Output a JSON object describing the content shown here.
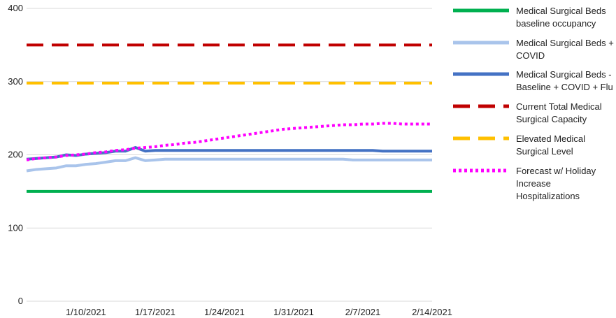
{
  "chart_data": {
    "type": "line",
    "categories": [
      null,
      null,
      null,
      null,
      null,
      null,
      "1/10/2021",
      null,
      null,
      null,
      null,
      null,
      null,
      "1/17/2021",
      null,
      null,
      null,
      null,
      null,
      null,
      "1/24/2021",
      null,
      null,
      null,
      null,
      null,
      null,
      "1/31/2021",
      null,
      null,
      null,
      null,
      null,
      null,
      "2/7/2021",
      null,
      null,
      null,
      null,
      null,
      null,
      "2/14/2021"
    ],
    "ylim": [
      0,
      400
    ],
    "yticks": [
      0,
      100,
      200,
      300,
      400
    ],
    "grid": true,
    "legend": "right",
    "series": [
      {
        "name": "Medical Surgical Beds baseline occupancy",
        "color": "#00b050",
        "style": "solid",
        "values": [
          150,
          150,
          150,
          150,
          150,
          150,
          150,
          150,
          150,
          150,
          150,
          150,
          150,
          150,
          150,
          150,
          150,
          150,
          150,
          150,
          150,
          150,
          150,
          150,
          150,
          150,
          150,
          150,
          150,
          150,
          150,
          150,
          150,
          150,
          150,
          150,
          150,
          150,
          150,
          150,
          150,
          150
        ]
      },
      {
        "name": "Medical Surgical Beds + COVID",
        "color": "#a9c4eb",
        "style": "solid",
        "values": [
          178,
          180,
          181,
          182,
          185,
          185,
          187,
          188,
          190,
          192,
          192,
          196,
          192,
          193,
          194,
          194,
          194,
          194,
          194,
          194,
          194,
          194,
          194,
          194,
          194,
          194,
          194,
          194,
          194,
          194,
          194,
          194,
          194,
          193,
          193,
          193,
          193,
          193,
          193,
          193,
          193,
          193
        ]
      },
      {
        "name": "Medical Surgical Beds - Baseline + COVID + Flu",
        "color": "#4472c4",
        "style": "solid",
        "values": [
          194,
          195,
          196,
          197,
          200,
          199,
          201,
          202,
          203,
          205,
          205,
          210,
          205,
          206,
          206,
          206,
          206,
          206,
          206,
          206,
          206,
          206,
          206,
          206,
          206,
          206,
          206,
          206,
          206,
          206,
          206,
          206,
          206,
          206,
          206,
          206,
          205,
          205,
          205,
          205,
          205,
          205
        ]
      },
      {
        "name": "Current Total Medical Surgical Capacity",
        "color": "#c00000",
        "style": "dashed",
        "values": [
          350,
          350,
          350,
          350,
          350,
          350,
          350,
          350,
          350,
          350,
          350,
          350,
          350,
          350,
          350,
          350,
          350,
          350,
          350,
          350,
          350,
          350,
          350,
          350,
          350,
          350,
          350,
          350,
          350,
          350,
          350,
          350,
          350,
          350,
          350,
          350,
          350,
          350,
          350,
          350,
          350,
          350
        ]
      },
      {
        "name": "Elevated Medical Surgical Level",
        "color": "#ffc000",
        "style": "dashed",
        "values": [
          298,
          298,
          298,
          298,
          298,
          298,
          298,
          298,
          298,
          298,
          298,
          298,
          298,
          298,
          298,
          298,
          298,
          298,
          298,
          298,
          298,
          298,
          298,
          298,
          298,
          298,
          298,
          298,
          298,
          298,
          298,
          298,
          298,
          298,
          298,
          298,
          298,
          298,
          298,
          298,
          298,
          298
        ]
      },
      {
        "name": "Forecast w/ Holiday Increase Hospitalizations",
        "color": "#ff00ff",
        "style": "dotted",
        "values": [
          193,
          195,
          196,
          197,
          199,
          200,
          201,
          203,
          204,
          206,
          207,
          209,
          210,
          211,
          213,
          214,
          216,
          217,
          219,
          221,
          223,
          225,
          227,
          229,
          231,
          233,
          235,
          236,
          237,
          238,
          239,
          240,
          241,
          241,
          242,
          242,
          243,
          243,
          242,
          242,
          242,
          242
        ]
      }
    ]
  }
}
